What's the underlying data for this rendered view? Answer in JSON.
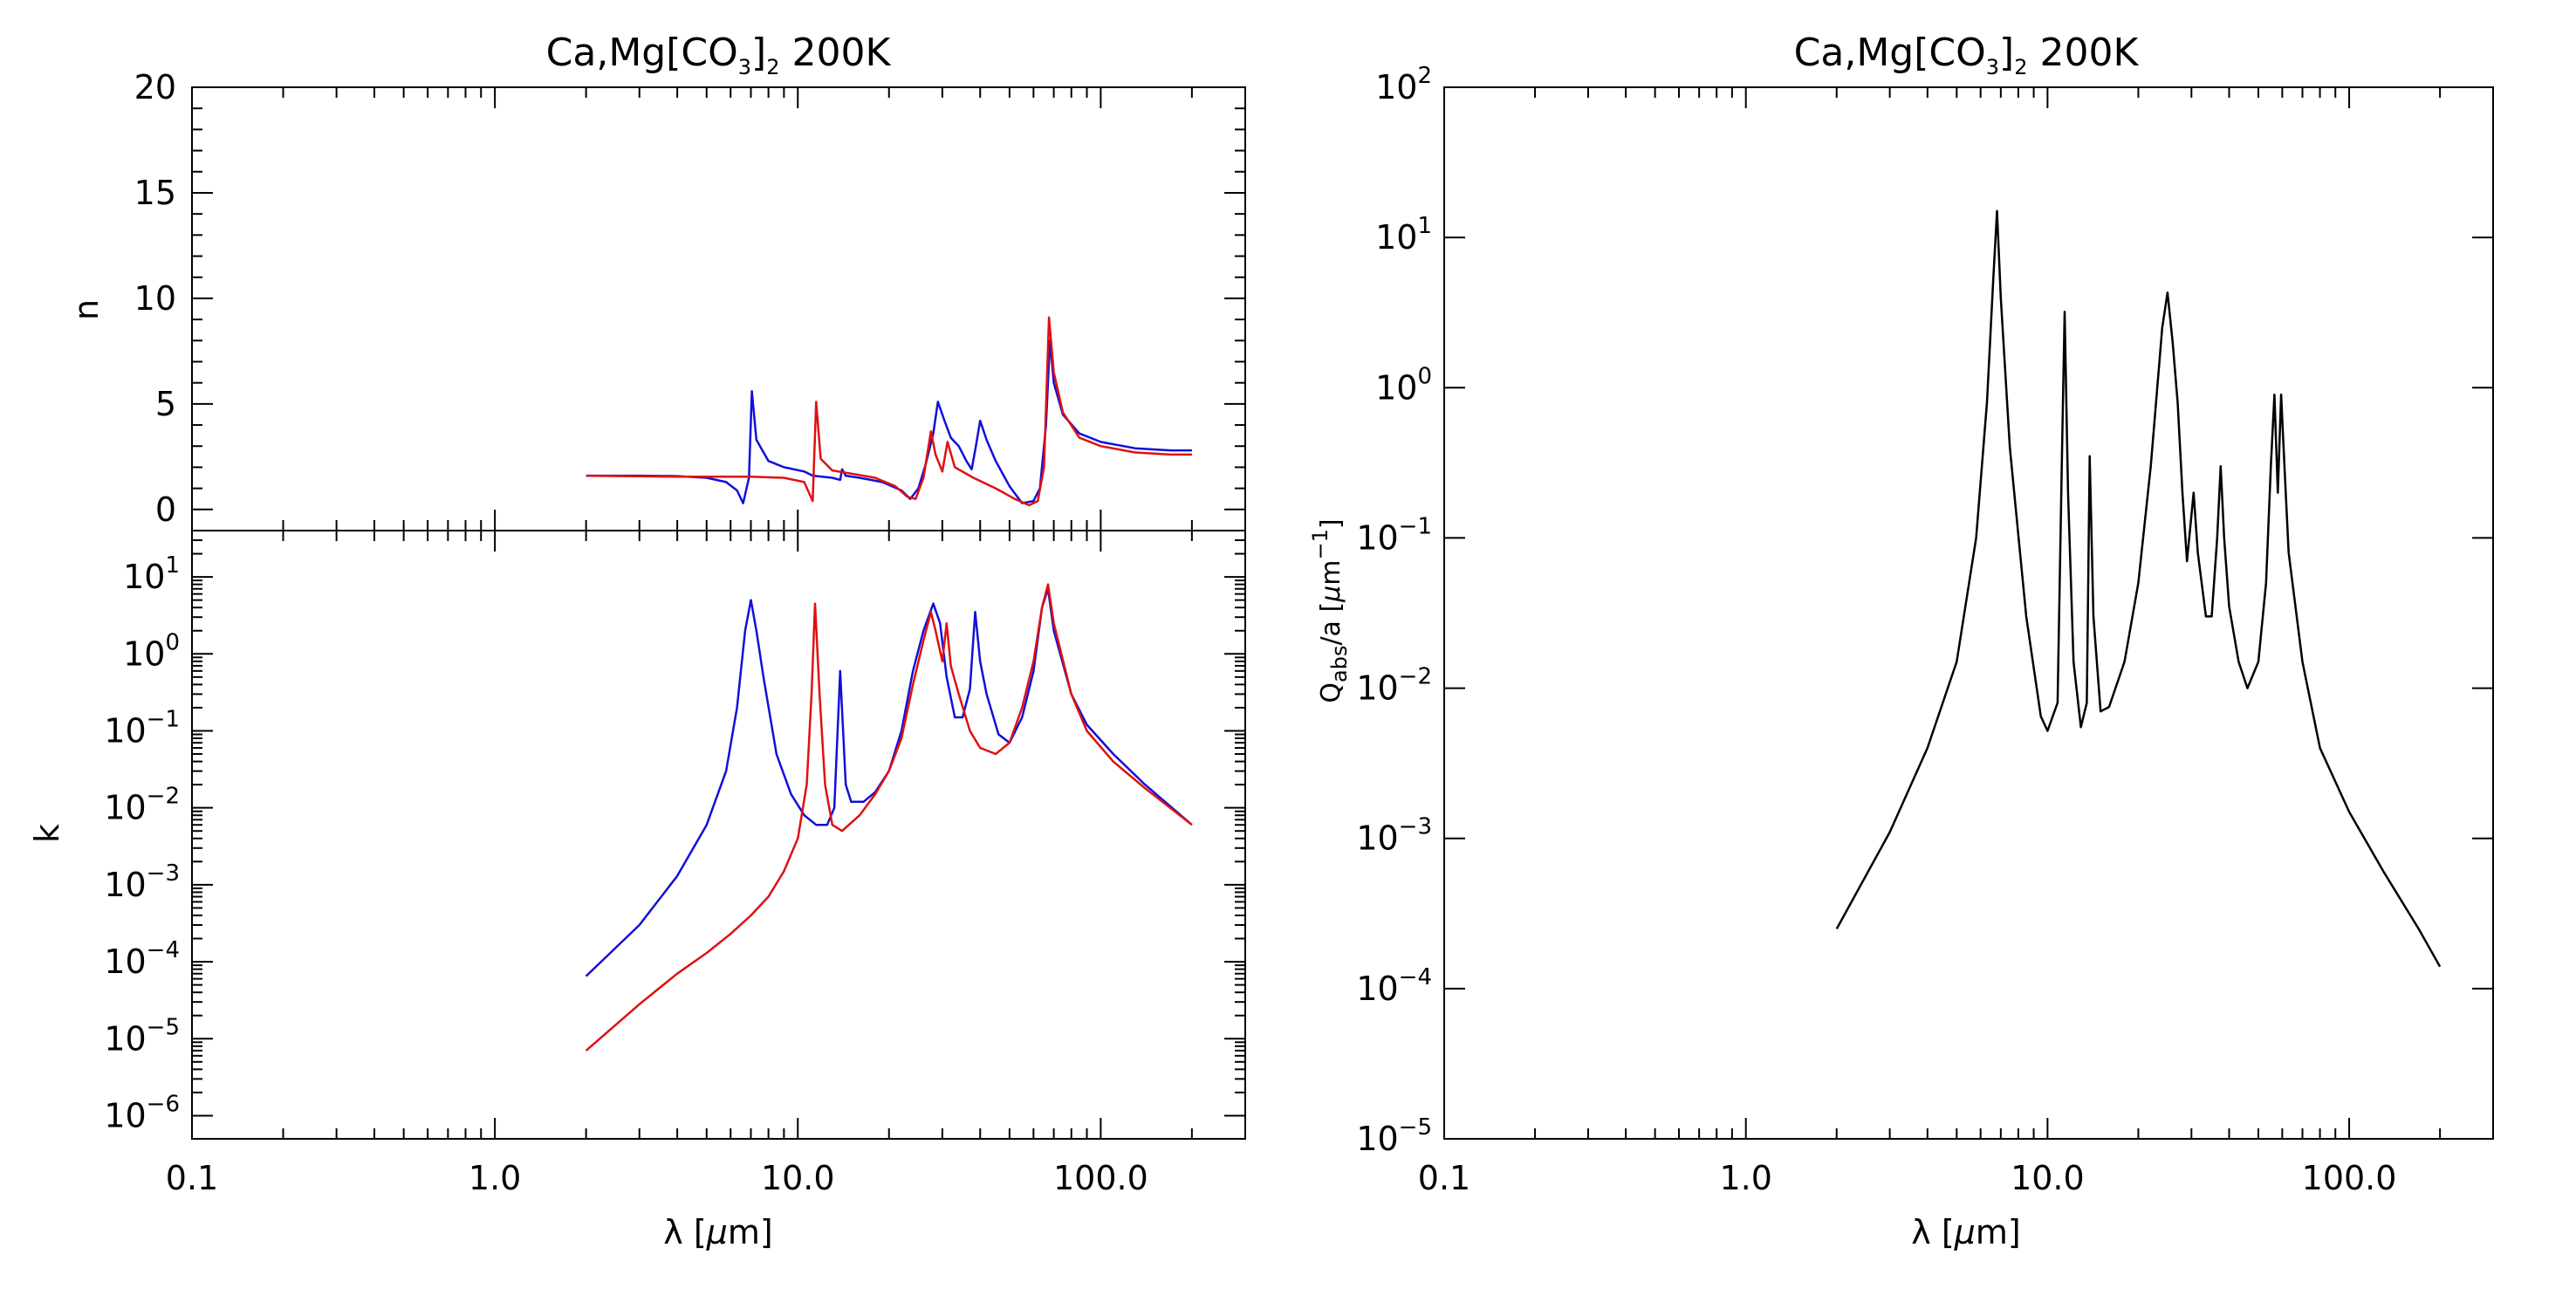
{
  "figure": {
    "left_title": {
      "pre": "Ca,Mg",
      "bracket_open": "[",
      "formula": "CO",
      "sub3": "3",
      "bracket_close": "]",
      "sub2": "2",
      "post": " 200K"
    },
    "right_title": {
      "pre": "Ca,Mg",
      "bracket_open": "[",
      "formula": "CO",
      "sub3": "3",
      "bracket_close": "]",
      "sub2": "2",
      "post": " 200K"
    },
    "n_label": "n",
    "k_label": "k",
    "x_label_left": {
      "lambda": "λ",
      "open": " [",
      "mu": "μ",
      "unit": "m",
      "close": "]"
    },
    "x_label_right": {
      "lambda": "λ",
      "open": " [",
      "mu": "μ",
      "unit": "m",
      "close": "]"
    },
    "q_label": {
      "Q": "Q",
      "sub": "abs",
      "mid": "/a [",
      "mu": "μ",
      "m": "m",
      "sup": "−1",
      "close": "]"
    }
  },
  "colors": {
    "series_a": "#1010d8",
    "series_b": "#e01010",
    "qabs": "#000000",
    "axis": "#000000"
  },
  "chart_data": [
    {
      "type": "line",
      "panel": "n",
      "title": "Ca,Mg[CO3]2 200K",
      "xlabel": "λ [μm]",
      "ylabel": "n",
      "xscale": "log",
      "xlim": [
        0.1,
        300
      ],
      "ylim": [
        -1,
        20
      ],
      "xtick_labels": [
        "0.1",
        "1.0",
        "10.0",
        "100.0"
      ],
      "yticks": [
        0,
        5,
        10,
        15,
        20
      ],
      "ytick_labels": [
        "0",
        "5",
        "10",
        "15",
        "20"
      ],
      "series": [
        {
          "color": "blue",
          "points": [
            [
              2.0,
              1.6
            ],
            [
              3.0,
              1.6
            ],
            [
              4.0,
              1.58
            ],
            [
              5.0,
              1.5
            ],
            [
              5.8,
              1.3
            ],
            [
              6.3,
              0.9
            ],
            [
              6.6,
              0.3
            ],
            [
              6.9,
              1.5
            ],
            [
              7.05,
              5.6
            ],
            [
              7.3,
              3.3
            ],
            [
              8.0,
              2.3
            ],
            [
              9.0,
              2.0
            ],
            [
              10.5,
              1.8
            ],
            [
              11.2,
              1.6
            ],
            [
              13.0,
              1.5
            ],
            [
              13.8,
              1.4
            ],
            [
              14.0,
              1.9
            ],
            [
              14.4,
              1.6
            ],
            [
              16.0,
              1.5
            ],
            [
              19.0,
              1.3
            ],
            [
              22.0,
              0.9
            ],
            [
              23.5,
              0.5
            ],
            [
              25.0,
              1.0
            ],
            [
              26.5,
              2.2
            ],
            [
              28.0,
              3.6
            ],
            [
              29.0,
              5.1
            ],
            [
              30.5,
              4.2
            ],
            [
              32.0,
              3.4
            ],
            [
              34.0,
              3.0
            ],
            [
              36.0,
              2.3
            ],
            [
              37.5,
              1.9
            ],
            [
              38.5,
              2.8
            ],
            [
              40.0,
              4.2
            ],
            [
              42.0,
              3.3
            ],
            [
              45.0,
              2.3
            ],
            [
              50.0,
              1.1
            ],
            [
              55.0,
              0.3
            ],
            [
              60.0,
              0.4
            ],
            [
              63.0,
              1.0
            ],
            [
              66.0,
              4.0
            ],
            [
              68.0,
              8.0
            ],
            [
              70.0,
              6.0
            ],
            [
              75.0,
              4.5
            ],
            [
              85.0,
              3.6
            ],
            [
              100.0,
              3.2
            ],
            [
              130.0,
              2.9
            ],
            [
              170.0,
              2.8
            ],
            [
              200.0,
              2.8
            ]
          ]
        },
        {
          "color": "red",
          "points": [
            [
              2.0,
              1.6
            ],
            [
              4.0,
              1.55
            ],
            [
              7.0,
              1.55
            ],
            [
              9.0,
              1.5
            ],
            [
              10.5,
              1.3
            ],
            [
              11.2,
              0.4
            ],
            [
              11.5,
              5.1
            ],
            [
              11.9,
              2.4
            ],
            [
              13.0,
              1.85
            ],
            [
              15.0,
              1.7
            ],
            [
              18.0,
              1.5
            ],
            [
              21.0,
              1.1
            ],
            [
              23.0,
              0.6
            ],
            [
              24.5,
              0.5
            ],
            [
              26.0,
              1.5
            ],
            [
              27.5,
              3.7
            ],
            [
              28.5,
              2.6
            ],
            [
              30.0,
              1.8
            ],
            [
              31.2,
              3.2
            ],
            [
              33.0,
              2.0
            ],
            [
              38.0,
              1.5
            ],
            [
              45.0,
              1.0
            ],
            [
              52.0,
              0.5
            ],
            [
              58.0,
              0.2
            ],
            [
              62.0,
              0.4
            ],
            [
              65.0,
              2.0
            ],
            [
              67.5,
              9.1
            ],
            [
              70.0,
              6.5
            ],
            [
              75.0,
              4.6
            ],
            [
              85.0,
              3.4
            ],
            [
              100.0,
              3.0
            ],
            [
              130.0,
              2.7
            ],
            [
              170.0,
              2.6
            ],
            [
              200.0,
              2.6
            ]
          ]
        }
      ]
    },
    {
      "type": "line",
      "panel": "k",
      "xlabel": "λ [μm]",
      "ylabel": "k",
      "xscale": "log",
      "yscale": "log",
      "xlim": [
        0.1,
        300
      ],
      "ylim": [
        5e-07,
        40
      ],
      "xtick_labels": [
        "0.1",
        "1.0",
        "10.0",
        "100.0"
      ],
      "ytick_exponents": [
        1,
        0,
        -1,
        -2,
        -3,
        -4,
        -5,
        -6
      ],
      "ytick_base": "10",
      "series": [
        {
          "color": "blue",
          "points": [
            [
              2.0,
              6.5e-05
            ],
            [
              3.0,
              0.0003
            ],
            [
              4.0,
              0.0013
            ],
            [
              5.0,
              0.006
            ],
            [
              5.8,
              0.03
            ],
            [
              6.3,
              0.2
            ],
            [
              6.7,
              2.0
            ],
            [
              7.0,
              5.0
            ],
            [
              7.3,
              2.0
            ],
            [
              7.7,
              0.5
            ],
            [
              8.5,
              0.05
            ],
            [
              9.5,
              0.015
            ],
            [
              10.5,
              0.008
            ],
            [
              11.5,
              0.006
            ],
            [
              12.5,
              0.006
            ],
            [
              13.2,
              0.01
            ],
            [
              13.8,
              0.6
            ],
            [
              14.4,
              0.02
            ],
            [
              15.0,
              0.012
            ],
            [
              16.5,
              0.012
            ],
            [
              18.0,
              0.016
            ],
            [
              20.0,
              0.03
            ],
            [
              22.0,
              0.1
            ],
            [
              24.0,
              0.6
            ],
            [
              26.0,
              2.0
            ],
            [
              28.0,
              4.5
            ],
            [
              29.5,
              2.5
            ],
            [
              31.0,
              0.5
            ],
            [
              33.0,
              0.15
            ],
            [
              35.0,
              0.15
            ],
            [
              37.0,
              0.35
            ],
            [
              38.5,
              3.5
            ],
            [
              40.0,
              0.8
            ],
            [
              42.0,
              0.3
            ],
            [
              46.0,
              0.09
            ],
            [
              50.0,
              0.07
            ],
            [
              55.0,
              0.15
            ],
            [
              60.0,
              0.6
            ],
            [
              64.0,
              4.0
            ],
            [
              67.0,
              7.0
            ],
            [
              70.0,
              2.0
            ],
            [
              80.0,
              0.3
            ],
            [
              90.0,
              0.12
            ],
            [
              110.0,
              0.05
            ],
            [
              140.0,
              0.02
            ],
            [
              200.0,
              0.006
            ]
          ]
        },
        {
          "color": "red",
          "points": [
            [
              2.0,
              7e-06
            ],
            [
              3.0,
              2.8e-05
            ],
            [
              4.0,
              7e-05
            ],
            [
              5.0,
              0.00013
            ],
            [
              6.0,
              0.00023
            ],
            [
              7.0,
              0.0004
            ],
            [
              8.0,
              0.0007
            ],
            [
              9.0,
              0.0015
            ],
            [
              10.0,
              0.004
            ],
            [
              10.7,
              0.02
            ],
            [
              11.1,
              0.3
            ],
            [
              11.4,
              4.5
            ],
            [
              11.8,
              0.3
            ],
            [
              12.3,
              0.02
            ],
            [
              13.0,
              0.006
            ],
            [
              14.0,
              0.005
            ],
            [
              16.0,
              0.008
            ],
            [
              18.0,
              0.015
            ],
            [
              20.0,
              0.03
            ],
            [
              22.0,
              0.08
            ],
            [
              24.0,
              0.4
            ],
            [
              26.0,
              1.5
            ],
            [
              27.5,
              3.5
            ],
            [
              28.5,
              2.0
            ],
            [
              30.0,
              0.8
            ],
            [
              31.0,
              2.5
            ],
            [
              32.0,
              0.7
            ],
            [
              34.0,
              0.3
            ],
            [
              37.0,
              0.1
            ],
            [
              40.0,
              0.06
            ],
            [
              45.0,
              0.05
            ],
            [
              50.0,
              0.07
            ],
            [
              55.0,
              0.2
            ],
            [
              60.0,
              0.8
            ],
            [
              64.0,
              4.0
            ],
            [
              67.0,
              8.0
            ],
            [
              70.0,
              2.5
            ],
            [
              80.0,
              0.3
            ],
            [
              90.0,
              0.1
            ],
            [
              110.0,
              0.04
            ],
            [
              140.0,
              0.018
            ],
            [
              200.0,
              0.006
            ]
          ]
        }
      ]
    },
    {
      "type": "line",
      "panel": "qabs",
      "title": "Ca,Mg[CO3]2 200K",
      "xlabel": "λ [μm]",
      "ylabel": "Qabs/a [μm−1]",
      "xscale": "log",
      "yscale": "log",
      "xlim": [
        0.1,
        300
      ],
      "ylim": [
        1e-05,
        100
      ],
      "xtick_labels": [
        "0.1",
        "1.0",
        "10.0",
        "100.0"
      ],
      "ytick_exponents": [
        2,
        1,
        0,
        -1,
        -2,
        -3,
        -4,
        -5
      ],
      "ytick_base": "10",
      "series": [
        {
          "color": "black",
          "points": [
            [
              2.0,
              0.00025
            ],
            [
              3.0,
              0.0011
            ],
            [
              4.0,
              0.004
            ],
            [
              5.0,
              0.015
            ],
            [
              5.8,
              0.1
            ],
            [
              6.3,
              0.8
            ],
            [
              6.6,
              5.0
            ],
            [
              6.8,
              15.0
            ],
            [
              7.0,
              4.0
            ],
            [
              7.5,
              0.4
            ],
            [
              8.5,
              0.03
            ],
            [
              9.5,
              0.0065
            ],
            [
              10.0,
              0.0052
            ],
            [
              10.8,
              0.008
            ],
            [
              11.2,
              0.5
            ],
            [
              11.4,
              3.2
            ],
            [
              11.7,
              0.2
            ],
            [
              12.2,
              0.015
            ],
            [
              12.9,
              0.0055
            ],
            [
              13.5,
              0.008
            ],
            [
              13.8,
              0.35
            ],
            [
              14.2,
              0.03
            ],
            [
              15.0,
              0.007
            ],
            [
              16.0,
              0.0075
            ],
            [
              18.0,
              0.015
            ],
            [
              20.0,
              0.05
            ],
            [
              22.0,
              0.3
            ],
            [
              24.0,
              2.5
            ],
            [
              25.0,
              4.3
            ],
            [
              26.0,
              2.0
            ],
            [
              27.0,
              0.8
            ],
            [
              28.0,
              0.2
            ],
            [
              29.0,
              0.07
            ],
            [
              30.5,
              0.2
            ],
            [
              31.5,
              0.08
            ],
            [
              33.5,
              0.03
            ],
            [
              35.0,
              0.03
            ],
            [
              36.5,
              0.1
            ],
            [
              37.5,
              0.3
            ],
            [
              38.5,
              0.1
            ],
            [
              40.0,
              0.035
            ],
            [
              43.0,
              0.015
            ],
            [
              46.0,
              0.01
            ],
            [
              50.0,
              0.015
            ],
            [
              53.0,
              0.05
            ],
            [
              55.0,
              0.3
            ],
            [
              56.5,
              0.9
            ],
            [
              58.0,
              0.2
            ],
            [
              59.5,
              0.9
            ],
            [
              61.0,
              0.3
            ],
            [
              63.0,
              0.08
            ],
            [
              70.0,
              0.015
            ],
            [
              80.0,
              0.004
            ],
            [
              100.0,
              0.0015
            ],
            [
              130.0,
              0.0006
            ],
            [
              170.0,
              0.00025
            ],
            [
              200.0,
              0.00014
            ]
          ]
        }
      ]
    }
  ]
}
